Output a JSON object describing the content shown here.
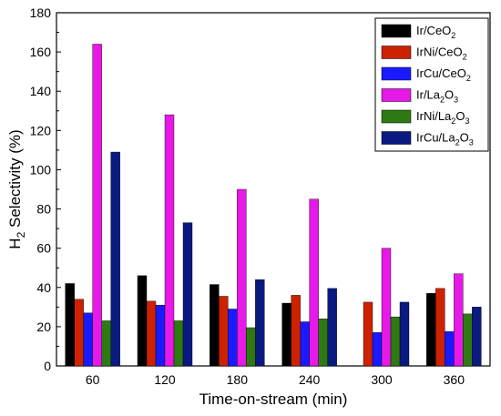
{
  "chart_data": {
    "type": "bar",
    "xlabel": "Time-on-stream (min)",
    "ylabel": {
      "main": "H",
      "sub": "2",
      "rest": " Selectivity (%)"
    },
    "ylim": [
      0,
      180
    ],
    "yticks": [
      0,
      20,
      40,
      60,
      80,
      100,
      120,
      140,
      160,
      180
    ],
    "categories": [
      "60",
      "120",
      "180",
      "240",
      "300",
      "360"
    ],
    "legend_position": "top-right",
    "series": [
      {
        "name": "Ir/CeO",
        "sub": "2",
        "color": "#000000",
        "values": [
          42,
          46,
          41.5,
          32,
          0,
          37
        ]
      },
      {
        "name": "IrNi/CeO",
        "sub": "2",
        "color": "#cc2200",
        "values": [
          34,
          33,
          35.5,
          36,
          32.5,
          39.5
        ]
      },
      {
        "name": "IrCu/CeO",
        "sub": "2",
        "color": "#1a1aff",
        "values": [
          27,
          31,
          29,
          22.5,
          17,
          17.5
        ]
      },
      {
        "name": "Ir/La",
        "sub": "2",
        "name2": "O",
        "sub2": "3",
        "color": "#e619e6",
        "values": [
          164,
          128,
          90,
          85,
          60,
          47
        ]
      },
      {
        "name": "IrNi/La",
        "sub": "2",
        "name2": "O",
        "sub2": "3",
        "color": "#2e7a12",
        "values": [
          23,
          23,
          19.5,
          24,
          25,
          26.5
        ]
      },
      {
        "name": "IrCu/La",
        "sub": "2",
        "name2": "O",
        "sub2": "3",
        "color": "#0a1a80",
        "values": [
          109,
          73,
          44,
          39.5,
          32.5,
          30
        ]
      }
    ]
  }
}
